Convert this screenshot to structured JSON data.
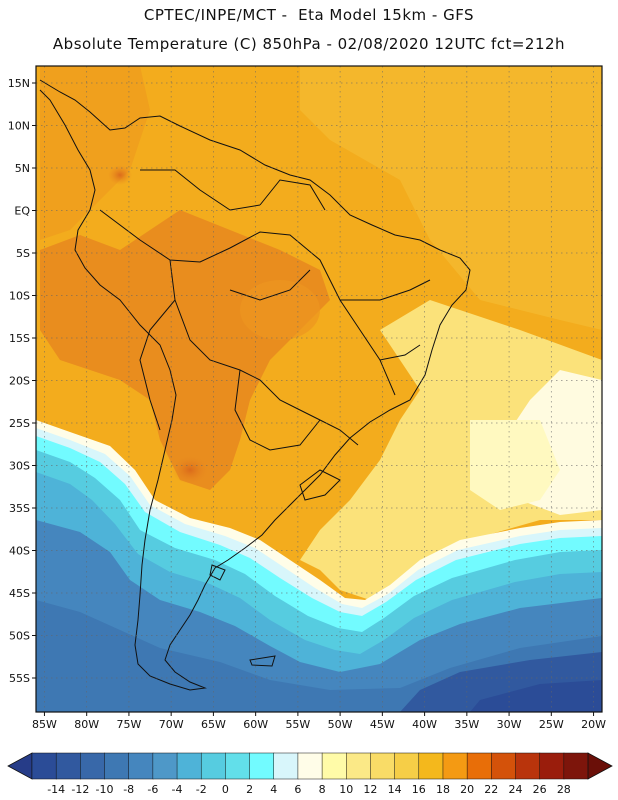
{
  "header": {
    "line1": "CPTEC/INPE/MCT -  Eta Model 15km - GFS",
    "line2": "Absolute Temperature (C) 850hPa - 02/08/2020 12UTC fct=212h"
  },
  "map": {
    "region": "South America",
    "lon_range": [
      -86,
      -19
    ],
    "lat_range": [
      -59,
      17
    ],
    "lat_labels": [
      {
        "text": "15N",
        "lat": 15
      },
      {
        "text": "10N",
        "lat": 10
      },
      {
        "text": "5N",
        "lat": 5
      },
      {
        "text": "EQ",
        "lat": 0
      },
      {
        "text": "5S",
        "lat": -5
      },
      {
        "text": "10S",
        "lat": -10
      },
      {
        "text": "15S",
        "lat": -15
      },
      {
        "text": "20S",
        "lat": -20
      },
      {
        "text": "25S",
        "lat": -25
      },
      {
        "text": "30S",
        "lat": -30
      },
      {
        "text": "35S",
        "lat": -35
      },
      {
        "text": "40S",
        "lat": -40
      },
      {
        "text": "45S",
        "lat": -45
      },
      {
        "text": "50S",
        "lat": -50
      },
      {
        "text": "55S",
        "lat": -55
      }
    ],
    "lon_labels": [
      {
        "text": "85W",
        "lon": -85
      },
      {
        "text": "80W",
        "lon": -80
      },
      {
        "text": "75W",
        "lon": -75
      },
      {
        "text": "70W",
        "lon": -70
      },
      {
        "text": "65W",
        "lon": -65
      },
      {
        "text": "60W",
        "lon": -60
      },
      {
        "text": "55W",
        "lon": -55
      },
      {
        "text": "50W",
        "lon": -50
      },
      {
        "text": "45W",
        "lon": -45
      },
      {
        "text": "40W",
        "lon": -40
      },
      {
        "text": "35W",
        "lon": -35
      },
      {
        "text": "30W",
        "lon": -30
      },
      {
        "text": "25W",
        "lon": -25
      },
      {
        "text": "20W",
        "lon": -20
      }
    ]
  },
  "colorbar": {
    "ticks": [
      "-14",
      "-12",
      "-10",
      "-8",
      "-6",
      "-4",
      "-2",
      "0",
      "2",
      "4",
      "6",
      "8",
      "10",
      "12",
      "14",
      "16",
      "18",
      "20",
      "22",
      "24",
      "26",
      "28"
    ],
    "colors": [
      "#2b4c97",
      "#31599f",
      "#3868a9",
      "#3e78b3",
      "#4586be",
      "#4e98c8",
      "#4eb3d8",
      "#56cce0",
      "#62dfea",
      "#72fbff",
      "#d8f6fb",
      "#fffde8",
      "#fffba8",
      "#fbe987",
      "#f9dc67",
      "#f6ce47",
      "#f4b81c",
      "#f49a13",
      "#e86e08",
      "#d4520a",
      "#b9340c",
      "#9a1d0c",
      "#7d150b"
    ],
    "under_color": "#263c88",
    "over_color": "#6a0f08"
  }
}
